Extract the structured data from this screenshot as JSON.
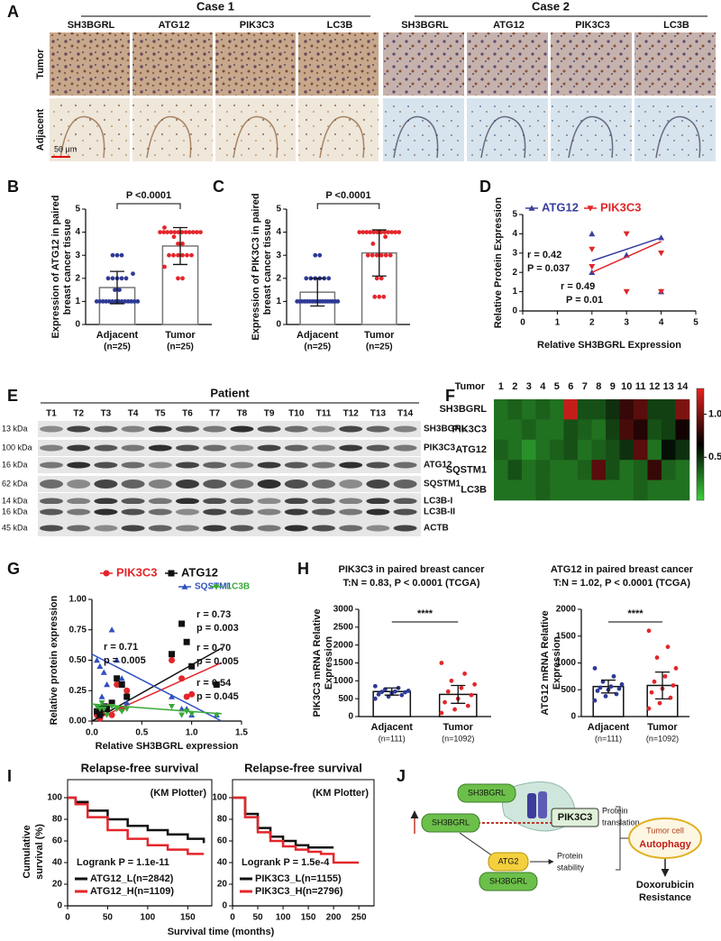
{
  "panel_labels": [
    "A",
    "B",
    "C",
    "D",
    "E",
    "F",
    "G",
    "H",
    "I",
    "J"
  ],
  "panel_a": {
    "cases": [
      "Case 1",
      "Case 2"
    ],
    "markers": [
      "SH3BGRL",
      "ATG12",
      "PIK3C3",
      "LC3B"
    ],
    "rows": [
      "Tumor",
      "Adjacent"
    ],
    "scale_bar": "50 μm"
  },
  "panel_e": {
    "title": "Patient",
    "lanes": [
      "T1",
      "T2",
      "T3",
      "T4",
      "T5",
      "T6",
      "T7",
      "T8",
      "T9",
      "T10",
      "T11",
      "T12",
      "T13",
      "T14"
    ],
    "markers": [
      "13 kDa",
      "100 kDa",
      "16 kDa",
      "62 kDa",
      "14 kDa",
      "16 kDa",
      "45 kDa"
    ],
    "proteins": [
      "SH3BGRL",
      "PIK3C3",
      "ATG12",
      "SQSTM1",
      "LC3B-I",
      "LC3B-II",
      "ACTB"
    ]
  },
  "panel_j": {
    "sh3bgrl": [
      "SH3BGRL",
      "SH3BGRL",
      "SH3BGRL"
    ],
    "pik3c3": "PIK3C3",
    "translation": [
      "Protein",
      "translation"
    ],
    "atg": "ATG2",
    "stability": [
      "Protein",
      "stability"
    ],
    "cell": "Tumor cell",
    "autophagy": "Autophagy",
    "outcome": [
      "Doxorubicin",
      "Resistance"
    ]
  },
  "chart_data": [
    {
      "type": "bar",
      "y_label": [
        "Expression of ATG12 in paired",
        "breast cancer tissue"
      ],
      "categories": [
        "Adjacent",
        "Tumor"
      ],
      "n_labels": [
        "(n=25)",
        "(n=25)"
      ],
      "values": [
        1.6,
        3.4
      ],
      "errors": [
        0.7,
        0.8
      ],
      "points": [
        [
          3,
          3,
          3,
          2.2,
          2,
          2,
          2,
          2,
          2,
          1.5,
          1.5,
          1,
          1,
          1,
          1,
          1,
          1,
          1,
          1,
          1,
          1,
          1,
          1,
          1,
          1
        ],
        [
          4.2,
          4,
          4,
          4,
          4,
          4,
          4,
          4,
          4,
          4,
          4,
          4,
          4,
          3.8,
          3.5,
          3.5,
          3,
          3,
          3,
          3,
          3,
          3,
          2.5,
          2,
          2
        ]
      ],
      "point_colors": [
        "#2e3a96",
        "#e3262b"
      ],
      "color": "#777777",
      "ylim": [
        0,
        5
      ],
      "yticks": [
        0,
        1,
        2,
        3,
        4,
        5
      ],
      "annotation": "P <0.0001"
    },
    {
      "type": "bar",
      "y_label": [
        "Expression of PIK3C3 in paired",
        "breast cancer tissue"
      ],
      "categories": [
        "Adjacent",
        "Tumor"
      ],
      "n_labels": [
        "(n=25)",
        "(n=25)"
      ],
      "values": [
        1.4,
        3.1
      ],
      "errors": [
        0.6,
        1.0
      ],
      "points": [
        [
          3,
          3,
          2,
          2,
          2,
          2,
          2,
          2,
          1,
          1,
          1,
          1,
          1,
          1,
          1,
          1,
          1,
          1,
          1,
          1,
          1,
          1,
          1,
          1,
          1
        ],
        [
          4,
          4,
          4,
          4,
          4,
          4,
          4,
          4,
          4,
          4,
          4,
          4,
          3.8,
          3.5,
          3,
          3,
          3,
          3,
          3,
          3,
          2,
          2,
          1.2,
          1.2,
          1.2
        ]
      ],
      "point_colors": [
        "#2e3a96",
        "#e3262b"
      ],
      "color": "#777777",
      "ylim": [
        0,
        5
      ],
      "yticks": [
        0,
        1,
        2,
        3,
        4,
        5
      ],
      "annotation": "P <0.0001"
    },
    {
      "type": "scatter",
      "x_label": "Relative SH3BGRL Expression",
      "y_label": [
        "Relative Protein Expression"
      ],
      "xlim": [
        0,
        5
      ],
      "xticks": [
        0,
        1,
        2,
        3,
        4,
        5
      ],
      "ylim": [
        0,
        5
      ],
      "yticks": [
        0,
        1,
        2,
        3,
        4,
        5
      ],
      "series": [
        {
          "name": "ATG12",
          "color": "#3a3f9e",
          "marker": "triangle",
          "x": [
            2,
            2,
            3,
            4,
            4
          ],
          "values": [
            4,
            2,
            2.9,
            3.8,
            1
          ],
          "fit": {
            "x": [
              2,
              4
            ],
            "values": [
              2.6,
              3.8
            ]
          }
        },
        {
          "name": "PIK3C3",
          "color": "#e0262a",
          "marker": "triangle-down",
          "x": [
            2,
            2,
            3,
            3,
            4,
            4
          ],
          "values": [
            3.2,
            2.3,
            4,
            1,
            3,
            1
          ],
          "fit": {
            "x": [
              2,
              4
            ],
            "values": [
              2.0,
              3.6
            ]
          }
        }
      ],
      "annotations": [
        "r = 0.42",
        "P = 0.037",
        "r = 0.49",
        "P = 0.01"
      ]
    },
    {
      "type": "heatmap",
      "x_label": "Tumor",
      "x": [
        "1",
        "2",
        "3",
        "4",
        "5",
        "6",
        "7",
        "8",
        "9",
        "10",
        "11",
        "12",
        "13",
        "14"
      ],
      "y": [
        "SH3BGRL",
        "PIK3C3",
        "ATG12",
        "SQSTM1",
        "LC3B"
      ],
      "values": [
        [
          0.3,
          0.35,
          0.3,
          0.35,
          0.3,
          1.2,
          0.4,
          0.4,
          0.5,
          0.8,
          0.9,
          0.45,
          0.45,
          1.0
        ],
        [
          0.3,
          0.3,
          0.35,
          0.3,
          0.3,
          0.4,
          0.35,
          0.3,
          0.45,
          0.85,
          0.75,
          0.4,
          0.45,
          0.7
        ],
        [
          0.35,
          0.3,
          0.2,
          0.3,
          0.35,
          0.4,
          0.3,
          0.35,
          0.4,
          0.5,
          0.9,
          0.3,
          0.6,
          0.5
        ],
        [
          0.3,
          0.4,
          0.3,
          0.35,
          0.3,
          0.3,
          0.35,
          0.9,
          0.4,
          0.3,
          0.35,
          0.8,
          0.35,
          0.3
        ],
        [
          0.3,
          0.3,
          0.3,
          0.35,
          0.3,
          0.3,
          0.3,
          0.3,
          0.3,
          0.3,
          0.35,
          0.3,
          0.3,
          0.3
        ]
      ],
      "clim": [
        0,
        1.3
      ],
      "colors": [
        "#3bd13b",
        "#000000",
        "#e8231f"
      ],
      "cticks": [
        {
          "value": 1,
          "label": "1.0"
        },
        0.5
      ]
    },
    {
      "type": "scatter",
      "x_label": "Relative SH3BGRL expression",
      "y_label": [
        "Relative protein expression"
      ],
      "xlim": [
        0,
        1.5
      ],
      "xticks": [
        {
          "value": 0,
          "label": "0.0"
        },
        {
          "value": 0.5,
          "label": "0.5"
        },
        {
          "value": 1,
          "label": "1.0"
        },
        {
          "value": 1.5,
          "label": "1.5"
        }
      ],
      "ylim": [
        0,
        1
      ],
      "yticks": [
        {
          "value": 0,
          "label": "0.00"
        },
        {
          "value": 0.25,
          "label": "0.25"
        },
        {
          "value": 0.5,
          "label": "0.50"
        },
        {
          "value": 0.75,
          "label": "0.75"
        },
        {
          "value": 1,
          "label": "1.00"
        }
      ],
      "x": [
        0.05,
        0.08,
        0.1,
        0.12,
        0.15,
        0.2,
        0.25,
        0.3,
        0.35,
        0.8,
        0.9,
        0.95,
        1.0,
        1.25
      ],
      "series": [
        {
          "name": "PIK3C3",
          "color": "#e3262b",
          "marker": "circle",
          "values": [
            0.05,
            0.02,
            0.08,
            0.1,
            0.12,
            0.05,
            0.3,
            0.1,
            0.25,
            0.5,
            0.35,
            0.2,
            0.22,
            0.3
          ],
          "fit": {
            "x": [
              0,
              1.3
            ],
            "values": [
              0.0,
              0.48
            ]
          }
        },
        {
          "name": "ATG12",
          "color": "#111111",
          "marker": "square",
          "values": [
            0.08,
            0.05,
            0.1,
            0.12,
            0.1,
            0.15,
            0.35,
            0.3,
            0.2,
            0.55,
            0.8,
            0.65,
            0.45,
            0.3
          ],
          "fit": {
            "x": [
              0,
              1.3
            ],
            "values": [
              0.0,
              0.6
            ]
          }
        },
        {
          "name": "SQSTM1",
          "color": "#3050c0",
          "marker": "triangle",
          "values": [
            0.5,
            0.45,
            0.2,
            0.4,
            0.3,
            0.75,
            0.5,
            0.35,
            0.15,
            0.2,
            0.1,
            0.1,
            0.05,
            0.05
          ],
          "fit": {
            "x": [
              0,
              1.3
            ],
            "values": [
              0.55,
              0.0
            ]
          }
        },
        {
          "name": "LC3B",
          "color": "#3aa83a",
          "marker": "triangle-down",
          "values": [
            0.12,
            0.1,
            0.15,
            0.1,
            0.05,
            0.12,
            0.1,
            0.08,
            0.1,
            0.12,
            0.05,
            0.08,
            0.06,
            0.05
          ],
          "fit": {
            "x": [
              0,
              1.3
            ],
            "values": [
              0.14,
              0.06
            ]
          }
        }
      ],
      "annotations": [
        "r = 0.71",
        "p = 0.005",
        "r = 0.73",
        "p = 0.003",
        "r = 0.70",
        "p = 0.005",
        "r = 0.54",
        "p = 0.045"
      ]
    },
    {
      "type": "bar",
      "title": "PIK3C3 in paired breast cancer",
      "subtitle": "T:N = 0.83, P < 0.0001 (TCGA)",
      "y_label": [
        "PIK3C3 mRNA Relative",
        "Expression"
      ],
      "categories": [
        "Adjacent",
        "Tumor"
      ],
      "n_labels": [
        "(n=111)",
        "(n=1092)"
      ],
      "values": [
        700,
        620
      ],
      "errors": [
        100,
        250
      ],
      "points": [
        [
          850,
          800,
          760,
          720,
          700,
          690,
          680,
          650,
          620,
          600,
          560,
          500
        ],
        [
          1500,
          1200,
          1000,
          900,
          800,
          700,
          600,
          500,
          400,
          300,
          200,
          100
        ]
      ],
      "point_colors": [
        "#2e3a96",
        "#e3262b"
      ],
      "color": "#111111",
      "ylim": [
        0,
        3000
      ],
      "yticks": [
        0,
        500,
        1000,
        1500,
        2000,
        2500,
        3000
      ],
      "annotation": "****"
    },
    {
      "type": "bar",
      "title": "ATG12 in paired breast cancer",
      "subtitle": "T:N = 1.02, P < 0.0001 (TCGA)",
      "y_label": [
        "ATG12 mRNA Relative",
        "Expression"
      ],
      "categories": [
        "Adjacent",
        "Tumor"
      ],
      "n_labels": [
        "(n=111)",
        "(n=1092)"
      ],
      "values": [
        560,
        580
      ],
      "errors": [
        120,
        250
      ],
      "points": [
        [
          900,
          750,
          650,
          600,
          560,
          540,
          520,
          500,
          480,
          420,
          380,
          300
        ],
        [
          1600,
          1300,
          1100,
          900,
          750,
          650,
          580,
          520,
          450,
          350,
          250,
          150
        ]
      ],
      "point_colors": [
        "#2e3a96",
        "#e3262b"
      ],
      "color": "#111111",
      "ylim": [
        0,
        2000
      ],
      "yticks": [
        0,
        500,
        1000,
        1500,
        2000
      ],
      "annotation": "****"
    },
    {
      "type": "line",
      "step": true,
      "title": "Relapse-free survival",
      "note": "(KM Plotter)",
      "x_label": "Survival time (months)",
      "y_label": [
        "Cumulative",
        "survival (%)"
      ],
      "xlim": [
        0,
        180
      ],
      "xticks": [
        0,
        50,
        100,
        150
      ],
      "ylim": [
        0,
        100
      ],
      "yticks": [
        0,
        20,
        40,
        60,
        80,
        100
      ],
      "annotation": "Logrank P = 1.1e-11",
      "series": [
        {
          "name": "ATG12_L(n=2842)",
          "color": "#111111",
          "x": [
            0,
            10,
            25,
            50,
            75,
            100,
            125,
            150,
            170
          ],
          "values": [
            100,
            96,
            88,
            80,
            74,
            70,
            66,
            62,
            58
          ]
        },
        {
          "name": "ATG12_H(n=1109)",
          "color": "#e3262b",
          "x": [
            0,
            10,
            25,
            50,
            75,
            100,
            125,
            150,
            170
          ],
          "values": [
            100,
            94,
            82,
            70,
            62,
            56,
            52,
            48,
            48
          ]
        }
      ]
    },
    {
      "type": "line",
      "step": true,
      "title": "Relapse-free survival",
      "note": "(KM Plotter)",
      "xlim": [
        0,
        280
      ],
      "xticks": [
        0,
        50,
        100,
        150,
        200,
        250
      ],
      "ylim": [
        0,
        100
      ],
      "yticks": [
        0,
        20,
        40,
        60,
        80,
        100
      ],
      "annotation": "Logrank P = 1.5e-4",
      "series": [
        {
          "name": "PIK3C3_L(n=1155)",
          "color": "#111111",
          "x": [
            0,
            25,
            50,
            75,
            100,
            125,
            150,
            175,
            200
          ],
          "values": [
            100,
            85,
            72,
            64,
            60,
            56,
            54,
            54,
            54
          ]
        },
        {
          "name": "PIK3C3_H(n=2796)",
          "color": "#e3262b",
          "x": [
            0,
            25,
            50,
            75,
            100,
            125,
            150,
            175,
            200,
            225,
            250
          ],
          "values": [
            100,
            82,
            68,
            60,
            55,
            52,
            50,
            48,
            40,
            40,
            40
          ]
        }
      ]
    }
  ]
}
